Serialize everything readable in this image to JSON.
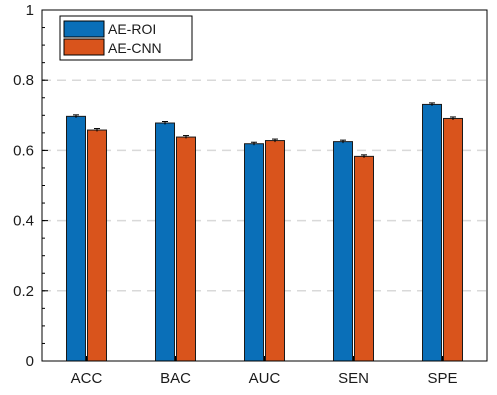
{
  "chart_data": {
    "type": "bar",
    "categories": [
      "ACC",
      "BAC",
      "AUC",
      "SEN",
      "SPE"
    ],
    "series": [
      {
        "name": "AE-ROI",
        "color": "#0a6fb8",
        "values": [
          0.697,
          0.678,
          0.619,
          0.625,
          0.731
        ]
      },
      {
        "name": "AE-CNN",
        "color": "#d9541c",
        "values": [
          0.658,
          0.638,
          0.628,
          0.583,
          0.691
        ]
      }
    ],
    "title": "",
    "xlabel": "",
    "ylabel": "",
    "ylim": [
      0,
      1
    ],
    "yticks": [
      0,
      0.2,
      0.4,
      0.6,
      0.8,
      1
    ],
    "ytick_labels": [
      "0",
      "0.2",
      "0.4",
      "0.6",
      "0.8",
      "1"
    ],
    "grid": "horizontal dashed",
    "legend": "top-left",
    "error_bars": true
  }
}
